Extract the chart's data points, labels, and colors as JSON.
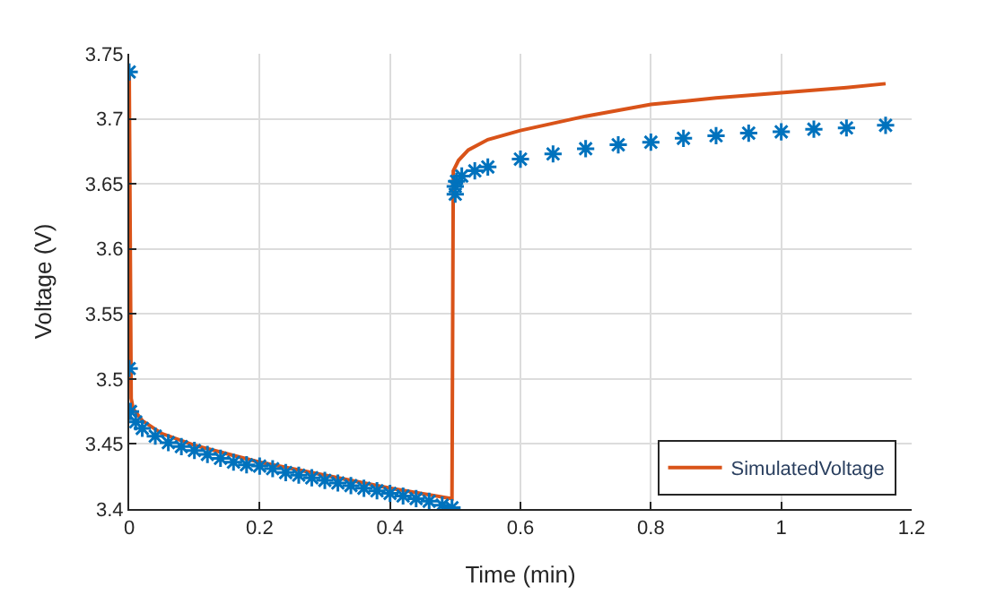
{
  "chart_data": {
    "type": "scatter",
    "xlabel": "Time (min)",
    "ylabel": "Voltage (V)",
    "xlim": [
      0,
      1.2
    ],
    "xticks": [
      0,
      0.2,
      0.4,
      0.6,
      0.8,
      1,
      1.2
    ],
    "ylim": [
      3.4,
      3.75
    ],
    "yticks": [
      3.4,
      3.45,
      3.5,
      3.55,
      3.6,
      3.65,
      3.7,
      3.75
    ],
    "grid": true,
    "legend": "bottom right",
    "series": [
      {
        "marker": "cross",
        "color": "#0072bd",
        "x": [
          0,
          0,
          0.002,
          0.01,
          0.02,
          0.04,
          0.06,
          0.08,
          0.1,
          0.12,
          0.14,
          0.16,
          0.18,
          0.2,
          0.22,
          0.24,
          0.26,
          0.28,
          0.3,
          0.32,
          0.34,
          0.36,
          0.38,
          0.4,
          0.42,
          0.44,
          0.46,
          0.48,
          0.495,
          0.5,
          0.5,
          0.502,
          0.51,
          0.53,
          0.55,
          0.6,
          0.65,
          0.7,
          0.75,
          0.8,
          0.85,
          0.9,
          0.95,
          1.0,
          1.05,
          1.1,
          1.16
        ],
        "values": [
          3.736,
          3.508,
          3.475,
          3.467,
          3.462,
          3.456,
          3.451,
          3.448,
          3.445,
          3.442,
          3.439,
          3.436,
          3.434,
          3.433,
          3.431,
          3.428,
          3.426,
          3.424,
          3.422,
          3.42,
          3.418,
          3.416,
          3.414,
          3.412,
          3.41,
          3.408,
          3.406,
          3.403,
          3.401,
          3.642,
          3.648,
          3.652,
          3.656,
          3.66,
          3.663,
          3.669,
          3.673,
          3.677,
          3.68,
          3.682,
          3.685,
          3.687,
          3.689,
          3.69,
          3.692,
          3.693,
          3.695
        ]
      },
      {
        "type": "line",
        "name": "SimulatedVoltage",
        "color": "#d95319",
        "marker": "none",
        "line_style": "solid",
        "x": [
          0,
          0.003,
          0.006,
          0.02,
          0.05,
          0.1,
          0.2,
          0.3,
          0.4,
          0.495,
          0.497,
          0.505,
          0.52,
          0.55,
          0.6,
          0.7,
          0.8,
          0.9,
          1.0,
          1.1,
          1.16
        ],
        "values": [
          3.736,
          3.485,
          3.477,
          3.468,
          3.458,
          3.449,
          3.436,
          3.426,
          3.416,
          3.408,
          3.66,
          3.668,
          3.676,
          3.684,
          3.691,
          3.702,
          3.711,
          3.716,
          3.72,
          3.724,
          3.727
        ]
      }
    ]
  }
}
